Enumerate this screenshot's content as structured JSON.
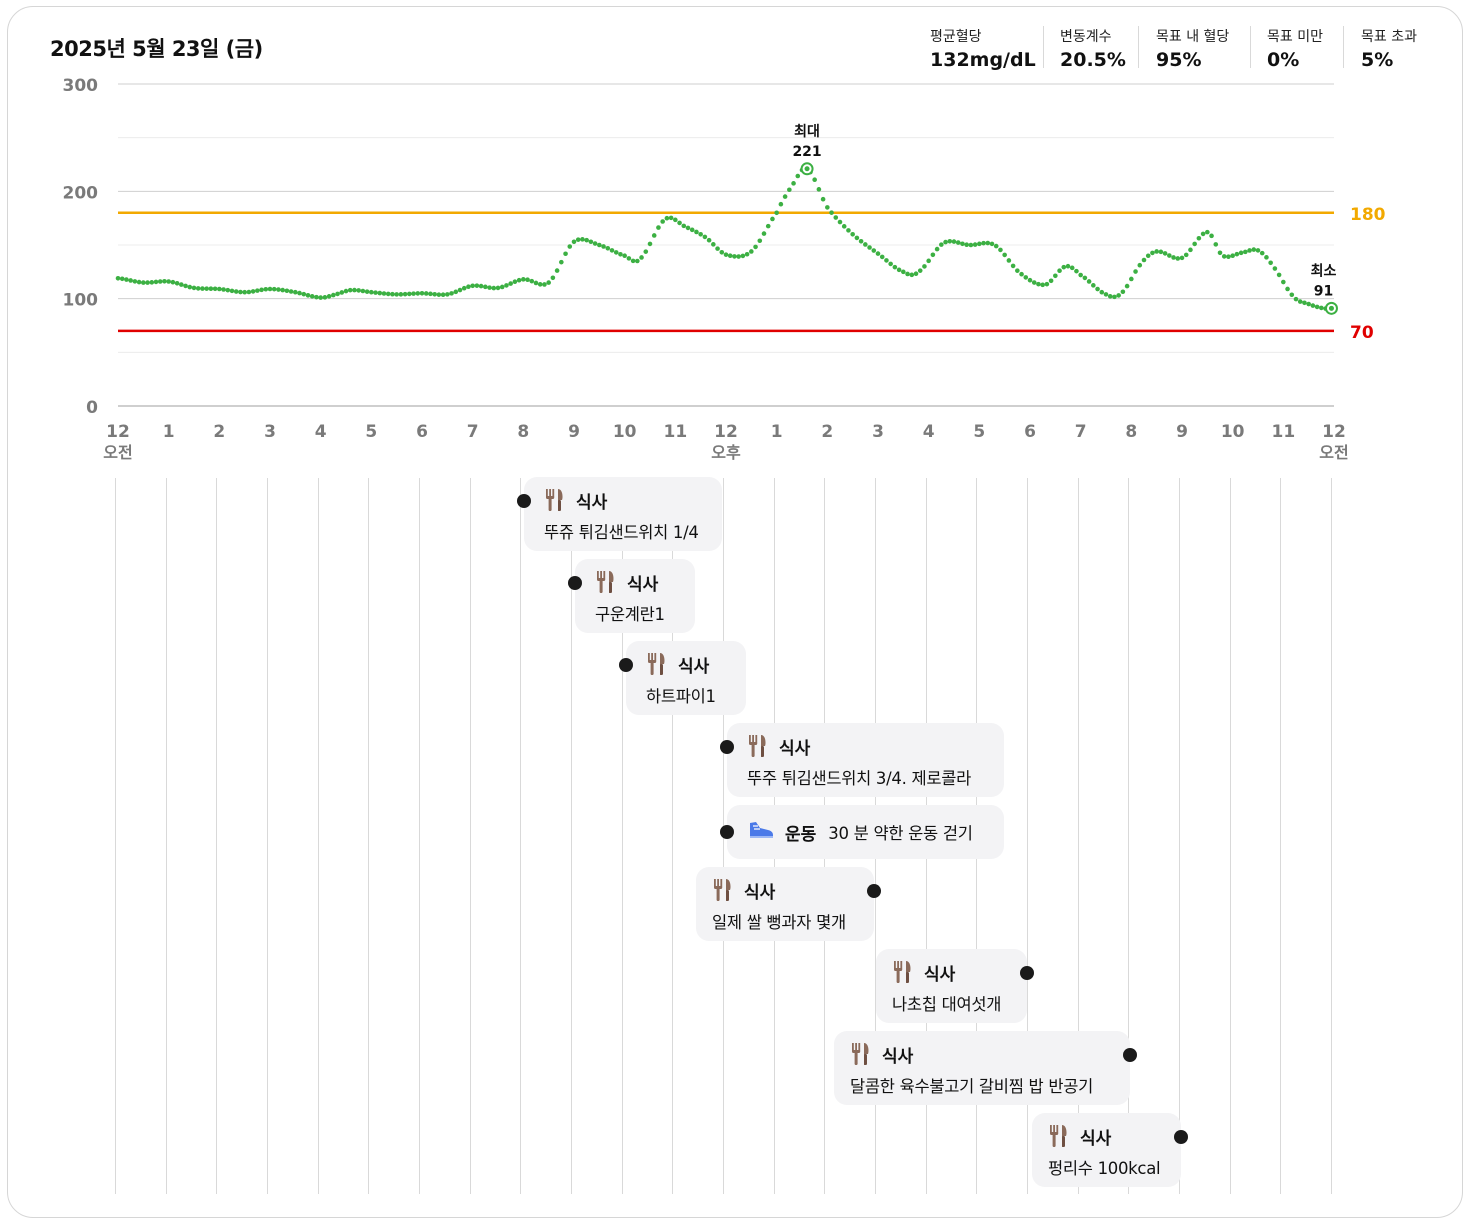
{
  "header": {
    "date": "2025년 5월 23일 (금)",
    "stats": [
      {
        "label": "평균혈당",
        "value": "132mg/dL"
      },
      {
        "label": "변동계수",
        "value": "20.5%"
      },
      {
        "label": "목표 내 혈당",
        "value": "95%"
      },
      {
        "label": "목표 미만",
        "value": "0%"
      },
      {
        "label": "목표 초과",
        "value": "5%"
      }
    ]
  },
  "colors": {
    "line": "#3cb043",
    "upper_threshold": "#f2a900",
    "lower_threshold": "#e00000",
    "grid": "#d9d9d9",
    "event_bg": "#f3f3f5"
  },
  "chart_data": {
    "type": "line",
    "ylim": [
      0,
      300
    ],
    "y_ticks": [
      "0",
      "100",
      "200",
      "300"
    ],
    "x_ticks": [
      "12",
      "1",
      "2",
      "3",
      "4",
      "5",
      "6",
      "7",
      "8",
      "9",
      "10",
      "11",
      "12",
      "1",
      "2",
      "3",
      "4",
      "5",
      "6",
      "7",
      "8",
      "9",
      "10",
      "11",
      "12"
    ],
    "x_period_labels": [
      {
        "hour": 0,
        "label": "오전"
      },
      {
        "hour": 12,
        "label": "오후"
      },
      {
        "hour": 24,
        "label": "오전"
      }
    ],
    "thresholds": [
      {
        "value": 180,
        "label": "180",
        "color": "#f2a900"
      },
      {
        "value": 70,
        "label": "70",
        "color": "#e00000"
      }
    ],
    "max_marker": {
      "hour": 13.6,
      "value": 221,
      "title": "최대",
      "label": "221"
    },
    "min_marker": {
      "hour": 23.95,
      "value": 91,
      "title": "최소",
      "label": "91"
    },
    "hours": [
      0,
      0.5,
      1,
      1.5,
      2,
      2.5,
      3,
      3.5,
      4,
      4.3,
      4.6,
      5,
      5.5,
      6,
      6.5,
      7,
      7.5,
      8,
      8.5,
      9,
      9.5,
      10,
      10.3,
      10.8,
      11.2,
      11.6,
      12,
      12.5,
      13,
      13.3,
      13.6,
      14,
      14.5,
      15,
      15.5,
      15.8,
      16.3,
      16.8,
      17.3,
      17.8,
      18.3,
      18.7,
      19,
      19.5,
      19.8,
      20.2,
      20.5,
      21,
      21.5,
      21.8,
      22.2,
      22.5,
      22.8,
      23.2,
      23.5,
      23.8,
      24
    ],
    "values": [
      119,
      115,
      116,
      110,
      109,
      106,
      109,
      106,
      101,
      104,
      108,
      106,
      104,
      105,
      104,
      112,
      110,
      118,
      115,
      153,
      150,
      140,
      137,
      174,
      167,
      157,
      141,
      144,
      180,
      205,
      221,
      185,
      160,
      142,
      125,
      125,
      152,
      150,
      150,
      124,
      113,
      130,
      122,
      104,
      105,
      133,
      144,
      138,
      162,
      140,
      143,
      145,
      130,
      102,
      95,
      91,
      91
    ]
  },
  "events": [
    {
      "hour": 8,
      "type": "식사",
      "icon": "utensils-icon",
      "desc": "뚜쥬 튀김샌드위치 1/4"
    },
    {
      "hour": 9,
      "type": "식사",
      "icon": "utensils-icon",
      "desc": "구운계란1"
    },
    {
      "hour": 10,
      "type": "식사",
      "icon": "utensils-icon",
      "desc": "하트파이1"
    },
    {
      "hour": 12,
      "type": "식사",
      "icon": "utensils-icon",
      "desc": "뚜주 튀김샌드위치 3/4. 제로콜라"
    },
    {
      "hour": 12,
      "type": "운동",
      "icon": "shoe-icon",
      "desc": "30 분 약한 운동 걷기"
    },
    {
      "hour": 15,
      "type": "식사",
      "icon": "utensils-icon",
      "desc": "일제 쌀 뻥과자 몇개"
    },
    {
      "hour": 18,
      "type": "식사",
      "icon": "utensils-icon",
      "desc": "나초칩 대여섯개"
    },
    {
      "hour": 20,
      "type": "식사",
      "icon": "utensils-icon",
      "desc": "달콤한 육수불고기 갈비찜 밥 반공기"
    },
    {
      "hour": 21,
      "type": "식사",
      "icon": "utensils-icon",
      "desc": "펑리수 100kcal"
    }
  ]
}
